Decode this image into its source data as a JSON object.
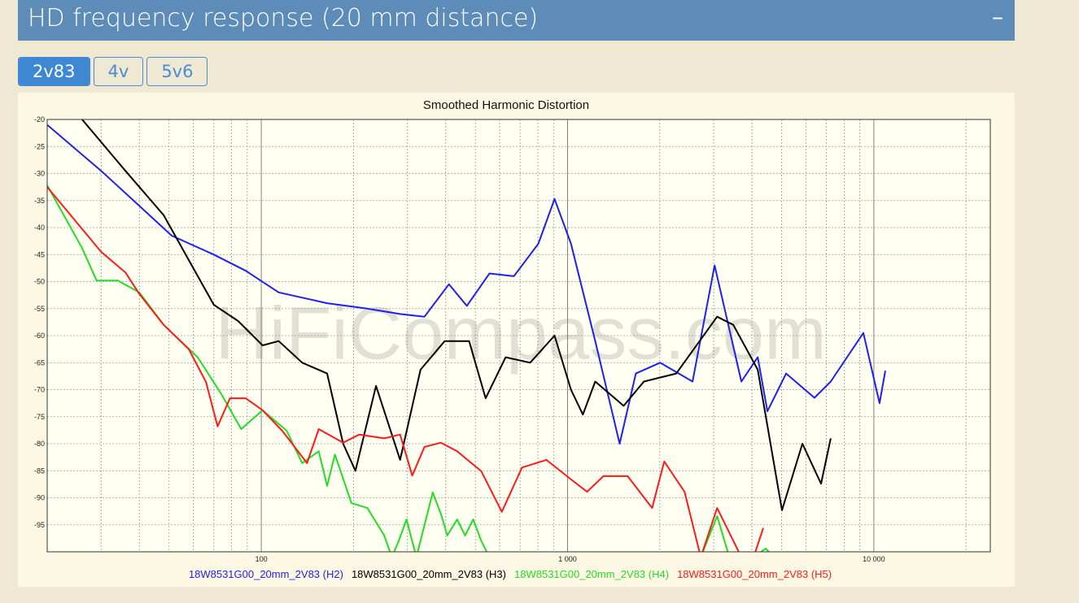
{
  "header": {
    "title": "HD frequency response (20 mm distance)",
    "toggle": "–"
  },
  "tabs": [
    "2v83",
    "4v",
    "5v6"
  ],
  "active_tab": 0,
  "chart_data": {
    "type": "line",
    "title": "Smoothed Harmonic Distortion",
    "watermark": "HiFiCompass.com",
    "xlog": true,
    "xlim": [
      20,
      24000
    ],
    "xticks": [
      {
        "value": 100,
        "label": "100"
      },
      {
        "value": 1000,
        "label": "1 000"
      },
      {
        "value": 10000,
        "label": "10 000"
      }
    ],
    "xminor": [
      20,
      30,
      40,
      50,
      60,
      70,
      80,
      90,
      200,
      300,
      400,
      500,
      600,
      700,
      800,
      900,
      2000,
      3000,
      4000,
      5000,
      6000,
      7000,
      8000,
      9000,
      20000
    ],
    "ylim": [
      -100,
      -20
    ],
    "yticks": [
      -20,
      -25,
      -30,
      -35,
      -40,
      -45,
      -50,
      -55,
      -60,
      -65,
      -70,
      -75,
      -80,
      -85,
      -90,
      -95
    ],
    "grid": true,
    "series": [
      {
        "name": "18W8531G00_20mm_2V83 (H2)",
        "color": "#1f1fee",
        "x": [
          20,
          30,
          40,
          51,
          70,
          89,
          114,
          164,
          222,
          284,
          341,
          410,
          469,
          556,
          668,
          803,
          907,
          1026,
          1231,
          1479,
          1671,
          2005,
          2559,
          3020,
          3695,
          4178,
          4493,
          5172,
          6400,
          7230,
          9240,
          10440,
          10900
        ],
        "values": [
          -21,
          -29.5,
          -36,
          -41.5,
          -45,
          -48,
          -52,
          -54,
          -55,
          -56,
          -56.5,
          -50.5,
          -54.5,
          -48.5,
          -49,
          -43,
          -34.7,
          -43,
          -61,
          -80,
          -67,
          -65,
          -68.5,
          -47,
          -68.5,
          -64,
          -74,
          -67,
          -71.5,
          -68.5,
          -59.5,
          -72.5,
          -66.5
        ]
      },
      {
        "name": "18W8531G00_20mm_2V83 (H3)",
        "color": "#000000",
        "x": [
          26,
          36,
          48,
          70,
          84,
          101,
          114,
          136,
          164,
          185,
          203,
          237,
          284,
          331,
          397,
          477,
          540,
          628,
          755,
          907,
          1026,
          1122,
          1231,
          1524,
          1775,
          2265,
          3078,
          3475,
          4178,
          5012,
          5844,
          6723,
          7230
        ],
        "values": [
          -20,
          -29.5,
          -37.7,
          -54.3,
          -57.3,
          -61.8,
          -61,
          -65,
          -67,
          -80,
          -85,
          -69.3,
          -83,
          -66.3,
          -61,
          -61,
          -71.6,
          -64,
          -65,
          -60,
          -70,
          -74.6,
          -68.5,
          -73,
          -68.5,
          -67,
          -56.5,
          -58,
          -66.3,
          -92.3,
          -80,
          -87.4,
          -79
        ]
      },
      {
        "name": "18W8531G00_20mm_2V83 (H4)",
        "color": "#22dd22",
        "x": [
          20,
          26,
          29,
          34,
          40,
          48,
          62,
          74,
          86,
          101,
          121,
          136,
          154,
          164,
          174,
          197,
          222,
          252,
          267,
          281,
          298,
          321,
          363,
          386,
          405,
          436,
          463,
          492,
          523,
          556,
          null,
          2723,
          3078,
          3374,
          null,
          4048,
          4436,
          4718
        ],
        "values": [
          -32.2,
          -43.8,
          -49.8,
          -49.8,
          -52,
          -58,
          -64,
          -70.8,
          -77.3,
          -73.8,
          -77.6,
          -83.6,
          -81.4,
          -87.8,
          -82,
          -91,
          -91.9,
          -97,
          -101,
          -98,
          -94,
          -101,
          -89,
          -93,
          -97,
          -94,
          -97,
          -94,
          -98,
          -101,
          null,
          -101,
          -93.4,
          -101,
          null,
          -101,
          -99.4,
          -101
        ]
      },
      {
        "name": "18W8531G00_20mm_2V83 (H5)",
        "color": "#ff1a1a",
        "x": [
          20,
          30,
          36,
          40,
          48,
          58,
          66,
          72,
          79,
          89,
          101,
          117,
          141,
          154,
          185,
          209,
          252,
          284,
          311,
          341,
          386,
          436,
          523,
          610,
          710,
          853,
          1026,
          1158,
          1309,
          1571,
          1888,
          2069,
          2410,
          2723,
          3078,
          3695,
          null,
          4048,
          4356
        ],
        "values": [
          -32.5,
          -44.5,
          -48.3,
          -52.3,
          -58,
          -62.5,
          -68.6,
          -76.8,
          -71.6,
          -71.6,
          -73.8,
          -77.6,
          -83.6,
          -77.3,
          -79.8,
          -78.3,
          -79,
          -78.3,
          -85.9,
          -80.6,
          -79.8,
          -81.4,
          -85.1,
          -92.6,
          -84.4,
          -83,
          -86.6,
          -88.9,
          -86,
          -86,
          -91.9,
          -83.3,
          -88.9,
          -101,
          -91.9,
          -101,
          null,
          -101,
          -95.6
        ]
      }
    ]
  }
}
